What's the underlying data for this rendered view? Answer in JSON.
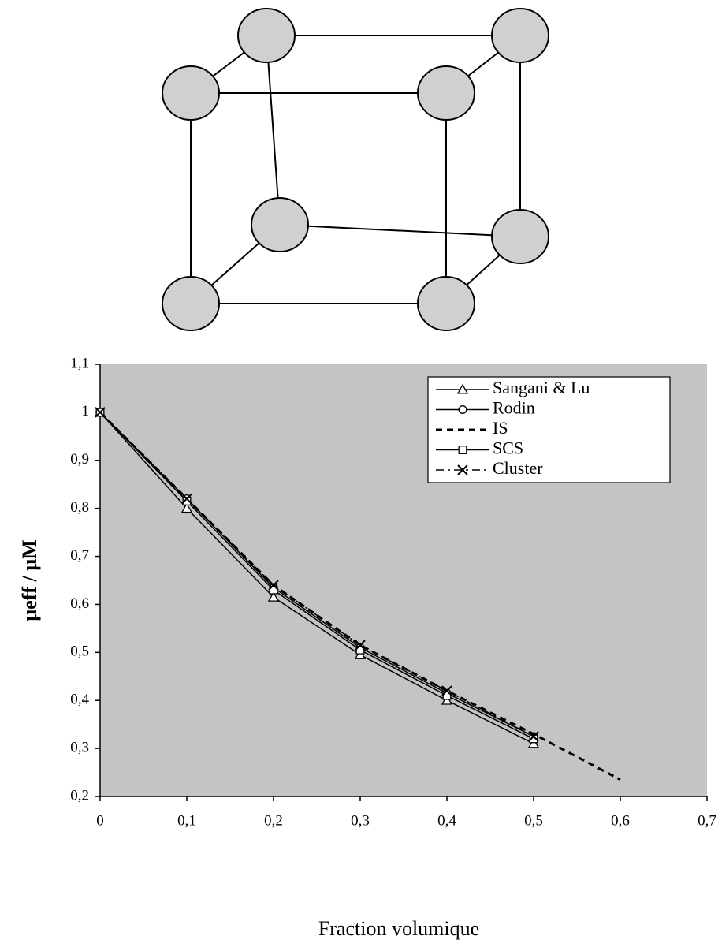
{
  "chart_data": {
    "type": "line",
    "x_label": "Fraction volumique",
    "y_label": "µeff / µM",
    "x": [
      0,
      0.1,
      0.2,
      0.3,
      0.4,
      0.5,
      0.6
    ],
    "series": [
      {
        "name": "Sangani & Lu",
        "color": "#000000",
        "marker": "triangle",
        "line_style": "solid",
        "values": [
          1,
          0.8,
          0.615,
          0.495,
          0.4,
          0.31,
          null
        ]
      },
      {
        "name": "Rodin",
        "color": "#000000",
        "marker": "circle",
        "line_style": "solid",
        "values": [
          1,
          0.82,
          0.635,
          0.51,
          0.415,
          0.325,
          null
        ]
      },
      {
        "name": "IS",
        "color": "#000000",
        "marker": "none",
        "line_style": "dashed",
        "values": [
          1,
          0.82,
          0.64,
          0.515,
          0.42,
          0.33,
          0.235
        ]
      },
      {
        "name": "SCS",
        "color": "#000000",
        "marker": "square",
        "line_style": "solid",
        "values": [
          1,
          0.815,
          0.63,
          0.505,
          0.41,
          0.32,
          null
        ]
      },
      {
        "name": "Cluster",
        "color": "#000000",
        "marker": "x",
        "line_style": "dashdot",
        "values": [
          1,
          0.82,
          0.64,
          0.515,
          0.42,
          0.325,
          null
        ]
      }
    ],
    "xlim": [
      0,
      0.7
    ],
    "ylim": [
      0.2,
      1.1
    ],
    "xticks": [
      0,
      {
        "value": 0.1,
        "label": "0,1"
      },
      {
        "value": 0.2,
        "label": "0,2"
      },
      {
        "value": 0.3,
        "label": "0,3"
      },
      {
        "value": 0.4,
        "label": "0,4"
      },
      {
        "value": 0.5,
        "label": "0,5"
      },
      {
        "value": 0.6,
        "label": "0,6"
      },
      {
        "value": 0.7,
        "label": "0,7"
      }
    ],
    "yticks": [
      {
        "value": 0.2,
        "label": "0,2"
      },
      {
        "value": 0.3,
        "label": "0,3"
      },
      {
        "value": 0.4,
        "label": "0,4"
      },
      {
        "value": 0.5,
        "label": "0,5"
      },
      {
        "value": 0.6,
        "label": "0,6"
      },
      {
        "value": 0.7,
        "label": "0,7"
      },
      {
        "value": 0.8,
        "label": "0,8"
      },
      {
        "value": 0.9,
        "label": "0,9"
      },
      1,
      {
        "value": 1.1,
        "label": "1,1"
      }
    ],
    "plot_background": "#c4c4c4",
    "legend": "upper right"
  }
}
